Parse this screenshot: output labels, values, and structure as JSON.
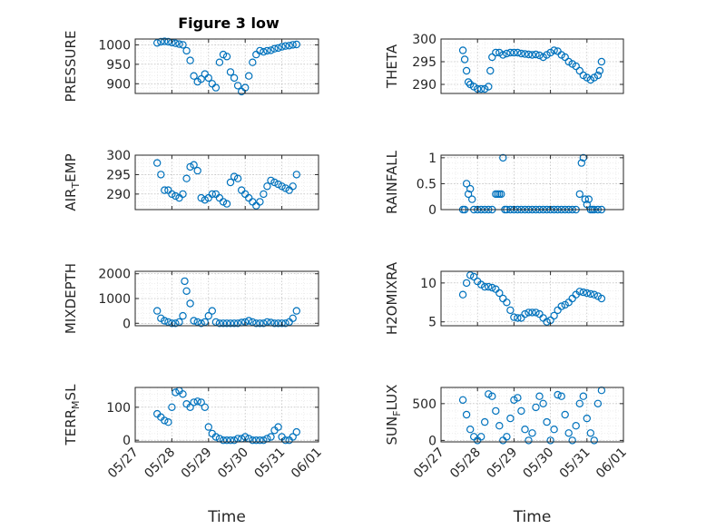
{
  "figure": {
    "title": "Figure 3 low",
    "marker_color": "#0072BD"
  },
  "x_tick_labels": [
    "05/27",
    "05/28",
    "05/29",
    "05/30",
    "05/31",
    "06/01"
  ],
  "chart_data": [
    {
      "type": "scatter",
      "title": "Figure 3 low",
      "ylabel": "PRESSURE",
      "xlabel": "",
      "ylim": [
        875,
        1015
      ],
      "yticks": [
        900,
        950,
        1000
      ],
      "grid": true,
      "x": [
        27.6,
        27.7,
        27.8,
        27.9,
        28.0,
        28.1,
        28.2,
        28.3,
        28.4,
        28.5,
        28.6,
        28.7,
        28.8,
        28.9,
        29.0,
        29.1,
        29.2,
        29.3,
        29.4,
        29.5,
        29.6,
        29.7,
        29.8,
        29.9,
        30.0,
        30.1,
        30.2,
        30.3,
        30.4,
        30.5,
        30.6,
        30.7,
        30.8,
        30.9,
        31.0,
        31.1,
        31.2,
        31.3,
        31.4
      ],
      "y": [
        1005,
        1008,
        1009,
        1008,
        1006,
        1004,
        1002,
        1000,
        985,
        960,
        920,
        905,
        912,
        925,
        915,
        900,
        890,
        955,
        975,
        970,
        930,
        915,
        895,
        880,
        890,
        920,
        955,
        975,
        985,
        982,
        985,
        986,
        990,
        992,
        995,
        997,
        998,
        1000,
        1001
      ]
    },
    {
      "type": "scatter",
      "ylabel": "THETA",
      "xlabel": "",
      "ylim": [
        288,
        300
      ],
      "yticks": [
        290,
        295,
        300
      ],
      "grid": true,
      "x": [
        27.6,
        27.65,
        27.7,
        27.75,
        27.8,
        27.9,
        28.0,
        28.1,
        28.2,
        28.3,
        28.35,
        28.4,
        28.5,
        28.6,
        28.7,
        28.8,
        28.9,
        29.0,
        29.1,
        29.2,
        29.3,
        29.4,
        29.5,
        29.6,
        29.7,
        29.8,
        29.9,
        30.0,
        30.1,
        30.2,
        30.3,
        30.4,
        30.5,
        30.6,
        30.7,
        30.8,
        30.9,
        31.0,
        31.1,
        31.2,
        31.3,
        31.35,
        31.4
      ],
      "y": [
        297.5,
        295.5,
        293,
        290.5,
        290,
        289.5,
        289,
        289,
        289,
        289.5,
        293,
        296,
        297,
        297,
        296.5,
        296.8,
        297,
        297,
        297,
        296.8,
        296.7,
        296.6,
        296.5,
        296.6,
        296.4,
        296,
        296.5,
        297,
        297.5,
        297.3,
        296.5,
        296,
        295,
        294.5,
        294,
        293,
        292,
        291.5,
        291,
        291.5,
        292,
        293,
        295
      ]
    },
    {
      "type": "scatter",
      "ylabel": "AIR_TEMP",
      "xlabel": "",
      "ylim": [
        286,
        300
      ],
      "yticks": [
        290,
        295,
        300
      ],
      "grid": true,
      "x": [
        27.6,
        27.7,
        27.8,
        27.9,
        28.0,
        28.1,
        28.2,
        28.3,
        28.4,
        28.5,
        28.6,
        28.7,
        28.8,
        28.9,
        29.0,
        29.1,
        29.2,
        29.3,
        29.4,
        29.5,
        29.6,
        29.7,
        29.8,
        29.9,
        30.0,
        30.1,
        30.2,
        30.3,
        30.4,
        30.5,
        30.6,
        30.7,
        30.8,
        30.9,
        31.0,
        31.1,
        31.2,
        31.3,
        31.4
      ],
      "y": [
        298,
        295,
        291,
        291,
        290,
        289.5,
        289,
        290,
        294,
        297,
        297.5,
        296,
        289,
        288.5,
        289,
        290,
        290,
        289,
        288,
        287.5,
        293,
        294.5,
        294,
        291,
        290,
        289,
        288,
        287,
        288,
        290,
        292,
        293.5,
        293,
        292.5,
        292,
        291.5,
        291,
        292,
        295
      ]
    },
    {
      "type": "scatter",
      "ylabel": "RAINFALL",
      "xlabel": "",
      "ylim": [
        0,
        1.05
      ],
      "yticks": [
        0,
        0.5,
        1
      ],
      "grid": true,
      "x": [
        27.6,
        27.65,
        27.7,
        27.75,
        27.8,
        27.85,
        27.9,
        28.0,
        28.1,
        28.2,
        28.3,
        28.4,
        28.5,
        28.55,
        28.6,
        28.65,
        28.7,
        28.75,
        28.8,
        28.9,
        29.0,
        29.1,
        29.2,
        29.3,
        29.4,
        29.5,
        29.6,
        29.7,
        29.8,
        29.9,
        30.0,
        30.1,
        30.2,
        30.3,
        30.4,
        30.5,
        30.6,
        30.7,
        30.8,
        30.85,
        30.9,
        30.95,
        31.0,
        31.05,
        31.1,
        31.15,
        31.2,
        31.3,
        31.4
      ],
      "y": [
        0,
        0,
        0.5,
        0.3,
        0.4,
        0.2,
        0,
        0,
        0,
        0,
        0,
        0,
        0.3,
        0.3,
        0.3,
        0.3,
        1.0,
        0,
        0,
        0,
        0,
        0,
        0,
        0,
        0,
        0,
        0,
        0,
        0,
        0,
        0,
        0,
        0,
        0,
        0,
        0,
        0,
        0,
        0.3,
        0.9,
        1.0,
        0.2,
        0.1,
        0.2,
        0,
        0,
        0,
        0,
        0
      ]
    },
    {
      "type": "scatter",
      "ylabel": "MIXDEPTH",
      "xlabel": "",
      "ylim": [
        -100,
        2100
      ],
      "yticks": [
        0,
        1000,
        2000
      ],
      "grid": true,
      "x": [
        27.6,
        27.7,
        27.8,
        27.9,
        28.0,
        28.1,
        28.2,
        28.3,
        28.35,
        28.4,
        28.5,
        28.6,
        28.7,
        28.8,
        28.9,
        29.0,
        29.1,
        29.2,
        29.3,
        29.4,
        29.5,
        29.6,
        29.7,
        29.8,
        29.9,
        30.0,
        30.1,
        30.2,
        30.3,
        30.4,
        30.5,
        30.6,
        30.7,
        30.8,
        30.9,
        31.0,
        31.1,
        31.2,
        31.3,
        31.4
      ],
      "y": [
        500,
        200,
        100,
        50,
        0,
        0,
        50,
        300,
        1700,
        1300,
        800,
        100,
        50,
        0,
        50,
        300,
        500,
        50,
        0,
        0,
        0,
        0,
        0,
        0,
        30,
        50,
        100,
        50,
        0,
        0,
        0,
        50,
        30,
        0,
        0,
        0,
        0,
        50,
        200,
        500
      ]
    },
    {
      "type": "scatter",
      "ylabel": "H2OMIXRA",
      "xlabel": "",
      "ylim": [
        4.5,
        11.5
      ],
      "yticks": [
        5,
        10
      ],
      "grid": true,
      "x": [
        27.6,
        27.7,
        27.8,
        27.9,
        28.0,
        28.1,
        28.2,
        28.3,
        28.4,
        28.5,
        28.6,
        28.7,
        28.8,
        28.9,
        29.0,
        29.1,
        29.2,
        29.3,
        29.4,
        29.5,
        29.6,
        29.7,
        29.8,
        29.9,
        30.0,
        30.1,
        30.2,
        30.3,
        30.4,
        30.5,
        30.6,
        30.7,
        30.8,
        30.9,
        31.0,
        31.1,
        31.2,
        31.3,
        31.4
      ],
      "y": [
        8.5,
        10,
        11,
        10.8,
        10.2,
        9.8,
        9.5,
        9.5,
        9.4,
        9.2,
        8.7,
        8,
        7.5,
        6.5,
        5.6,
        5.5,
        5.5,
        6,
        6.2,
        6.2,
        6.2,
        6,
        5.5,
        5,
        5.2,
        5.8,
        6.5,
        7,
        7.2,
        7.5,
        8,
        8.5,
        8.9,
        8.8,
        8.7,
        8.6,
        8.5,
        8.3,
        8
      ]
    },
    {
      "type": "scatter",
      "ylabel": "TERR_MSL",
      "xlabel": "Time",
      "ylim": [
        -5,
        160
      ],
      "yticks": [
        0,
        100
      ],
      "grid": true,
      "x": [
        27.6,
        27.7,
        27.8,
        27.9,
        28.0,
        28.1,
        28.2,
        28.3,
        28.4,
        28.5,
        28.6,
        28.7,
        28.8,
        28.9,
        29.0,
        29.1,
        29.2,
        29.3,
        29.4,
        29.5,
        29.6,
        29.7,
        29.8,
        29.9,
        30.0,
        30.1,
        30.2,
        30.3,
        30.4,
        30.5,
        30.6,
        30.7,
        30.8,
        30.9,
        31.0,
        31.1,
        31.2,
        31.3,
        31.4
      ],
      "y": [
        80,
        70,
        60,
        55,
        100,
        145,
        150,
        140,
        110,
        100,
        115,
        118,
        115,
        100,
        40,
        20,
        10,
        5,
        0,
        0,
        0,
        0,
        5,
        5,
        10,
        5,
        0,
        0,
        0,
        0,
        5,
        10,
        30,
        40,
        10,
        0,
        0,
        10,
        25
      ]
    },
    {
      "type": "scatter",
      "ylabel": "SUN_FLUX",
      "xlabel": "Time",
      "ylim": [
        -20,
        720
      ],
      "yticks": [
        0,
        500
      ],
      "grid": true,
      "x": [
        27.6,
        27.7,
        27.8,
        27.9,
        28.0,
        28.1,
        28.2,
        28.3,
        28.4,
        28.5,
        28.6,
        28.7,
        28.8,
        28.9,
        29.0,
        29.1,
        29.2,
        29.3,
        29.4,
        29.5,
        29.6,
        29.7,
        29.8,
        29.9,
        30.0,
        30.1,
        30.2,
        30.3,
        30.4,
        30.5,
        30.6,
        30.7,
        30.8,
        30.9,
        31.0,
        31.1,
        31.2,
        31.3,
        31.4
      ],
      "y": [
        550,
        350,
        150,
        50,
        0,
        50,
        250,
        630,
        600,
        400,
        200,
        0,
        50,
        300,
        550,
        580,
        400,
        150,
        0,
        100,
        450,
        600,
        500,
        250,
        0,
        150,
        620,
        600,
        350,
        100,
        0,
        200,
        500,
        600,
        300,
        100,
        0,
        500,
        680
      ]
    }
  ]
}
